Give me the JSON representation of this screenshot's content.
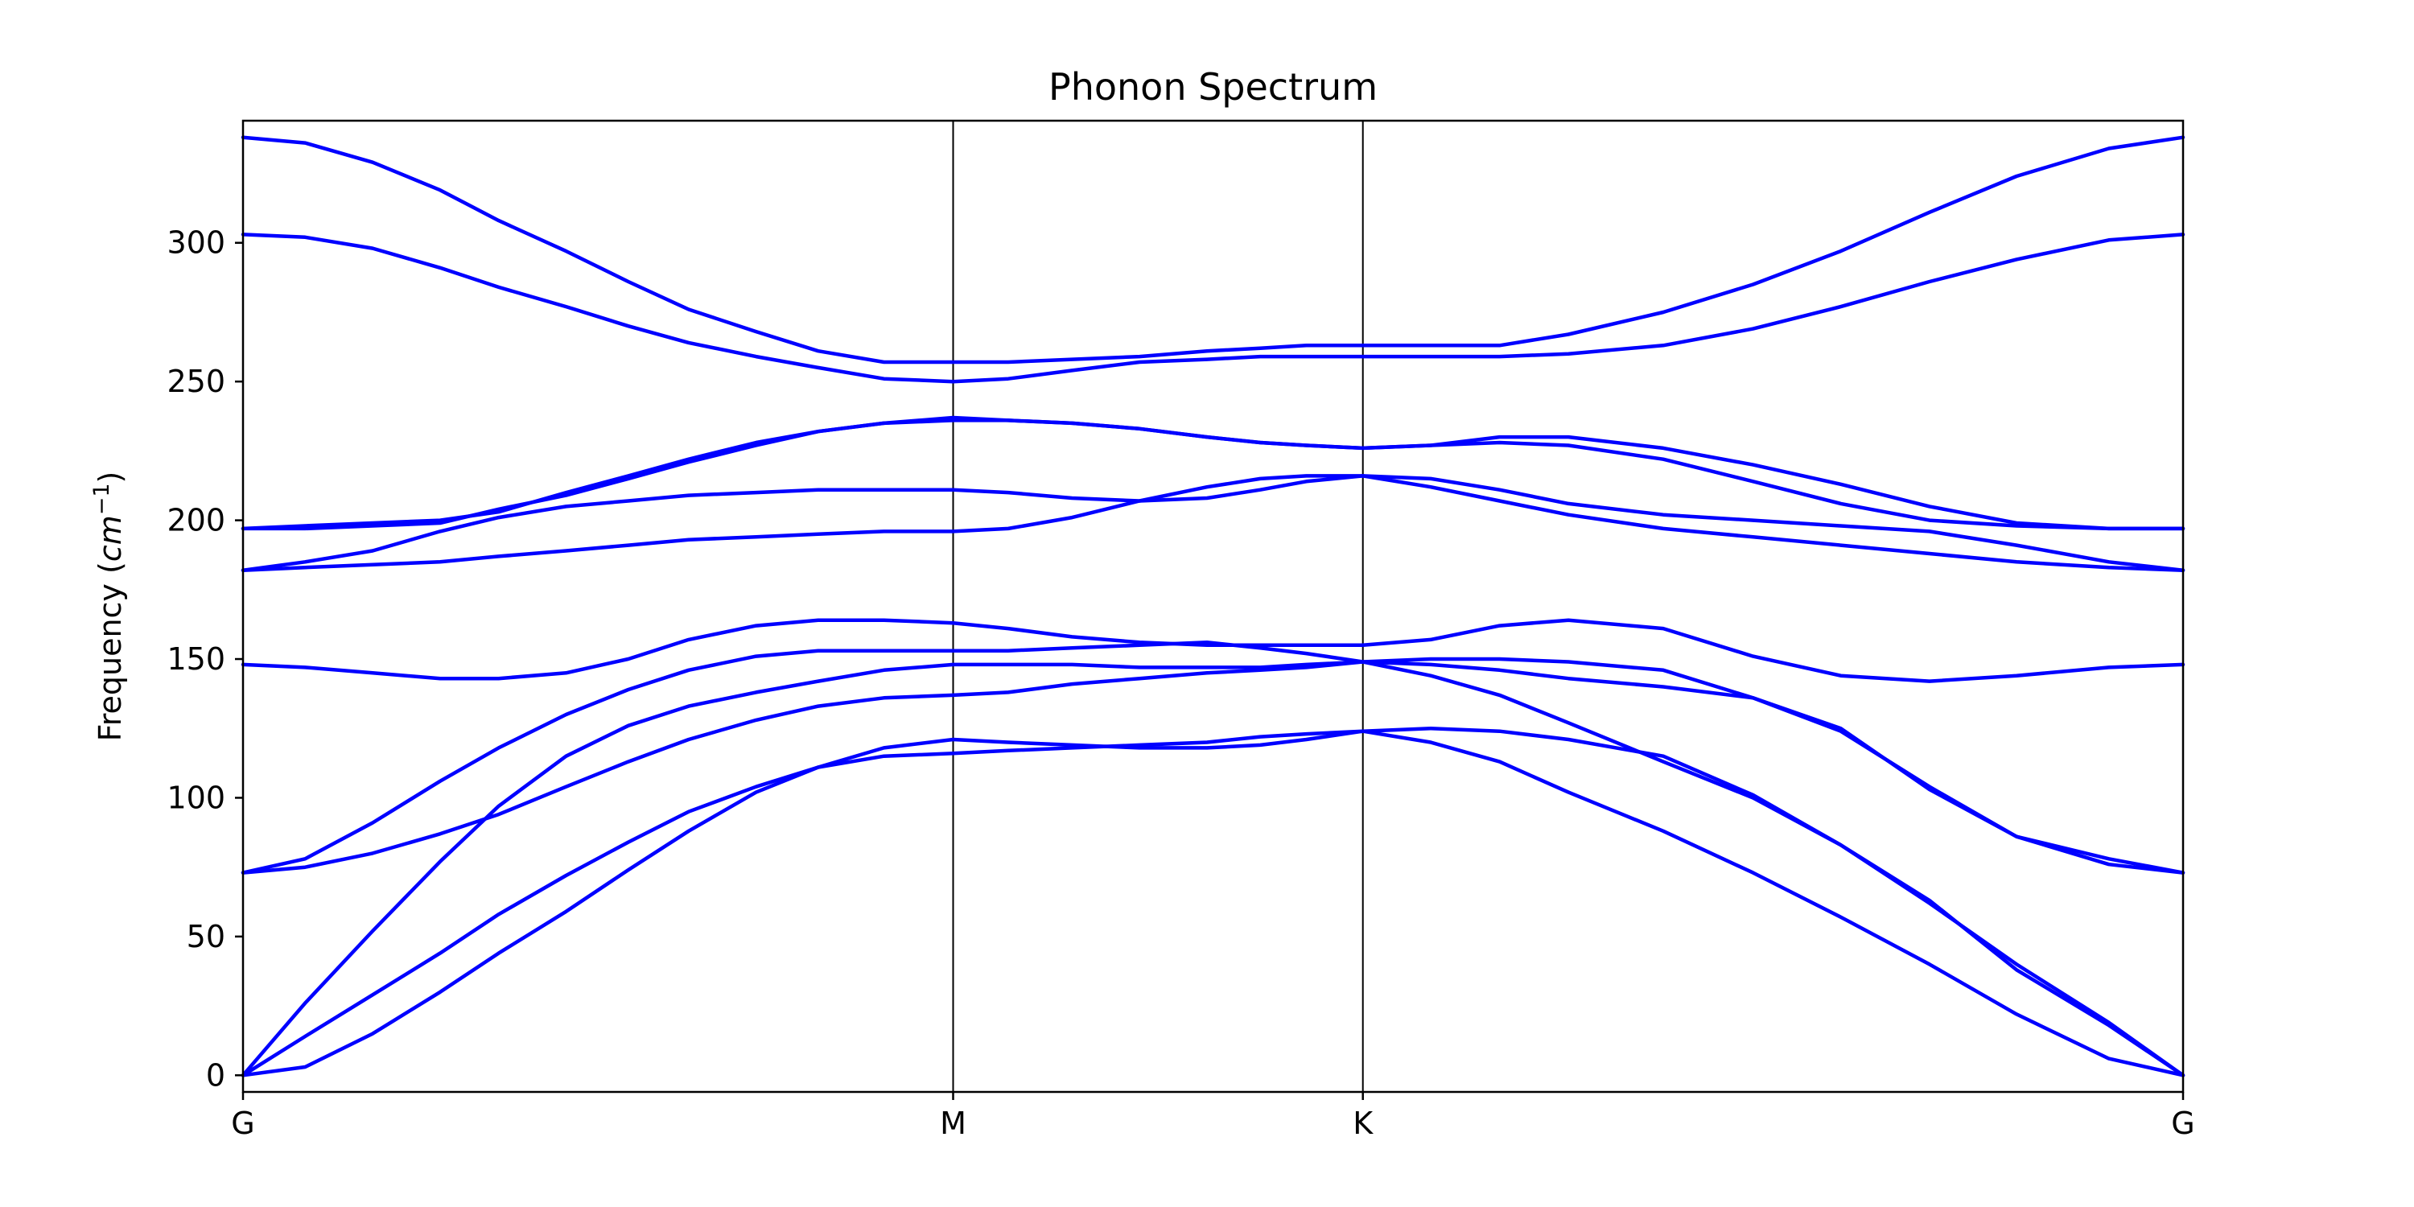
{
  "chart_data": {
    "type": "line",
    "title": "Phonon Spectrum",
    "ylabel": "Frequency (cm⁻¹)",
    "ylabel_parts": {
      "prefix": "Frequency (",
      "var": "cm",
      "sup": "−1",
      "suffix": ")"
    },
    "xlabel": "",
    "x_ticks": [
      {
        "x": 0,
        "label": "G"
      },
      {
        "x": 1.0,
        "label": "M"
      },
      {
        "x": 1.577,
        "label": "K"
      },
      {
        "x": 2.732,
        "label": "G"
      }
    ],
    "xlim": [
      0,
      2.732
    ],
    "ylim": [
      -6,
      344
    ],
    "y_ticks": [
      0,
      50,
      100,
      150,
      200,
      250,
      300
    ],
    "grid": false,
    "color": "#0000ff",
    "x": [
      0,
      0.0875,
      0.1825,
      0.2775,
      0.36,
      0.455,
      0.5425,
      0.6275,
      0.7225,
      0.81,
      0.9025,
      1.0,
      1.0775,
      1.1675,
      1.2625,
      1.3575,
      1.4325,
      1.4975,
      1.577,
      1.6725,
      1.7695,
      1.8665,
      2.0,
      2.1265,
      2.25,
      2.375,
      2.4975,
      2.6275,
      2.732
    ],
    "series": [
      {
        "values": [
          0,
          3,
          15,
          30,
          44,
          59,
          74,
          88,
          102,
          111,
          115,
          116,
          117,
          118,
          119,
          120,
          122,
          123,
          124,
          120,
          113,
          102,
          88,
          73,
          57,
          40,
          22,
          6,
          0
        ]
      },
      {
        "values": [
          0,
          14,
          29,
          44,
          58,
          72,
          84,
          95,
          104,
          111,
          118,
          121,
          120,
          119,
          118,
          118,
          119,
          121,
          124,
          125,
          124,
          121,
          115,
          101,
          83,
          62,
          40,
          19,
          0
        ]
      },
      {
        "values": [
          0,
          26,
          52,
          77,
          97,
          115,
          126,
          133,
          138,
          142,
          146,
          148,
          148,
          148,
          147,
          147,
          147,
          148,
          149,
          144,
          137,
          127,
          113,
          100,
          83,
          63,
          38,
          18,
          0
        ]
      },
      {
        "values": [
          73,
          75,
          80,
          87,
          94,
          104,
          113,
          121,
          128,
          133,
          136,
          137,
          138,
          141,
          143,
          145,
          146,
          147,
          149,
          150,
          150,
          149,
          146,
          136,
          124,
          104,
          86,
          76,
          73
        ]
      },
      {
        "values": [
          73,
          78,
          91,
          106,
          118,
          130,
          139,
          146,
          151,
          153,
          153,
          153,
          153,
          154,
          155,
          156,
          154,
          152,
          149,
          148,
          146,
          143,
          140,
          136,
          125,
          103,
          86,
          78,
          73
        ]
      },
      {
        "values": [
          148,
          147,
          145,
          143,
          143,
          145,
          150,
          157,
          162,
          164,
          164,
          163,
          161,
          158,
          156,
          155,
          155,
          155,
          155,
          157,
          162,
          164,
          161,
          151,
          144,
          142,
          144,
          147,
          148
        ]
      },
      {
        "values": [
          182,
          183,
          184,
          185,
          187,
          189,
          191,
          193,
          194,
          195,
          196,
          196,
          197,
          201,
          207,
          212,
          215,
          216,
          216,
          212,
          207,
          202,
          197,
          194,
          191,
          188,
          185,
          183,
          182
        ]
      },
      {
        "values": [
          182,
          185,
          189,
          196,
          201,
          205,
          207,
          209,
          210,
          211,
          211,
          211,
          210,
          208,
          207,
          208,
          211,
          214,
          216,
          215,
          211,
          206,
          202,
          200,
          198,
          196,
          191,
          185,
          182
        ]
      },
      {
        "values": [
          197,
          198,
          199,
          200,
          203,
          210,
          216,
          222,
          228,
          232,
          235,
          236,
          236,
          235,
          233,
          230,
          228,
          227,
          226,
          227,
          228,
          227,
          222,
          214,
          206,
          200,
          198,
          197,
          197
        ]
      },
      {
        "values": [
          197,
          197,
          198,
          199,
          204,
          209,
          215,
          221,
          227,
          232,
          235,
          237,
          236,
          235,
          233,
          230,
          228,
          227,
          226,
          227,
          230,
          230,
          226,
          220,
          213,
          205,
          199,
          197,
          197
        ]
      },
      {
        "values": [
          303,
          302,
          298,
          291,
          284,
          277,
          270,
          264,
          259,
          255,
          251,
          250,
          251,
          254,
          257,
          258,
          259,
          259,
          259,
          259,
          259,
          260,
          263,
          269,
          277,
          286,
          294,
          301,
          303
        ]
      },
      {
        "values": [
          338,
          336,
          329,
          319,
          308,
          297,
          286,
          276,
          268,
          261,
          257,
          257,
          257,
          258,
          259,
          261,
          262,
          263,
          263,
          263,
          263,
          267,
          275,
          285,
          297,
          311,
          324,
          334,
          338
        ]
      }
    ]
  }
}
